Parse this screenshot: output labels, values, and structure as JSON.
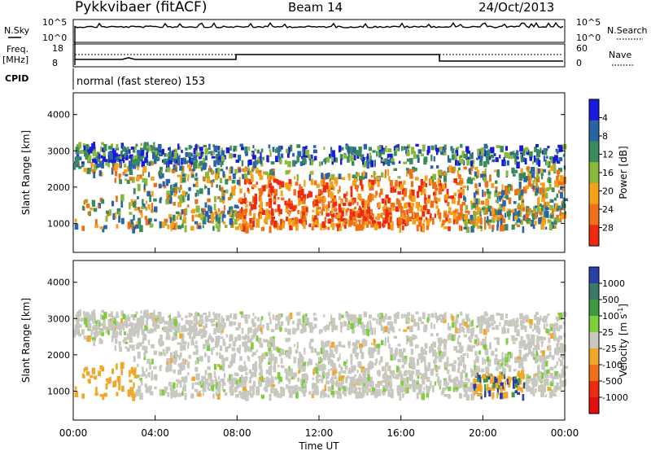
{
  "header": {
    "station": "Pykkvibaer (fitACF)",
    "beam": "Beam 14",
    "date": "24/Oct/2013"
  },
  "status_panels": {
    "nsky_label": "N.Sky",
    "nsky_ticks": [
      "10^5",
      "10^0"
    ],
    "nsearch_label": "N.Search",
    "nsearch_ticks": [
      "10^5",
      "10^0"
    ],
    "freq_label": "Freq.",
    "freq_unit": "[MHz]",
    "freq_ticks": [
      "18",
      "8"
    ],
    "nave_label": "Nave",
    "nave_ticks": [
      "60",
      "0"
    ],
    "cpid_label": "CPID",
    "cpid_text": "normal (fast stereo) 153"
  },
  "chart_data": [
    {
      "type": "heatmap",
      "title": "",
      "ylabel": "Slant Range [km]",
      "xlabel": "",
      "ylim": [
        200,
        4600
      ],
      "yticks": [
        "1000",
        "2000",
        "3000",
        "4000"
      ],
      "colorbar_label": "Power [dB]",
      "colorbar_ticks": [
        "4",
        "8",
        "12",
        "16",
        "20",
        "24",
        "28"
      ],
      "colorbar_colors": [
        "#1a1adc",
        "#2b64a6",
        "#3a8a5a",
        "#8ab83a",
        "#f5a21a",
        "#f07018",
        "#ee2a10"
      ]
    },
    {
      "type": "heatmap",
      "title": "",
      "ylabel": "Slant Range [km]",
      "xlabel": "Time UT",
      "ylim": [
        200,
        4600
      ],
      "yticks": [
        "1000",
        "2000",
        "3000",
        "4000"
      ],
      "xticks": [
        "00:00",
        "04:00",
        "08:00",
        "12:00",
        "16:00",
        "20:00",
        "00:00"
      ],
      "colorbar_label": "Velocity [m s",
      "colorbar_sup": "-1",
      "colorbar_suffix": "]",
      "colorbar_ticks": [
        "1000",
        "500",
        "100",
        "25",
        "-25",
        "-100",
        "-500",
        "-1000"
      ],
      "colorbar_colors": [
        "#2a3fa8",
        "#3a7a6a",
        "#3f9a3f",
        "#7ccf3a",
        "#c8c8c0",
        "#f0a82a",
        "#f07018",
        "#ee2a10",
        "#e01010"
      ]
    }
  ]
}
